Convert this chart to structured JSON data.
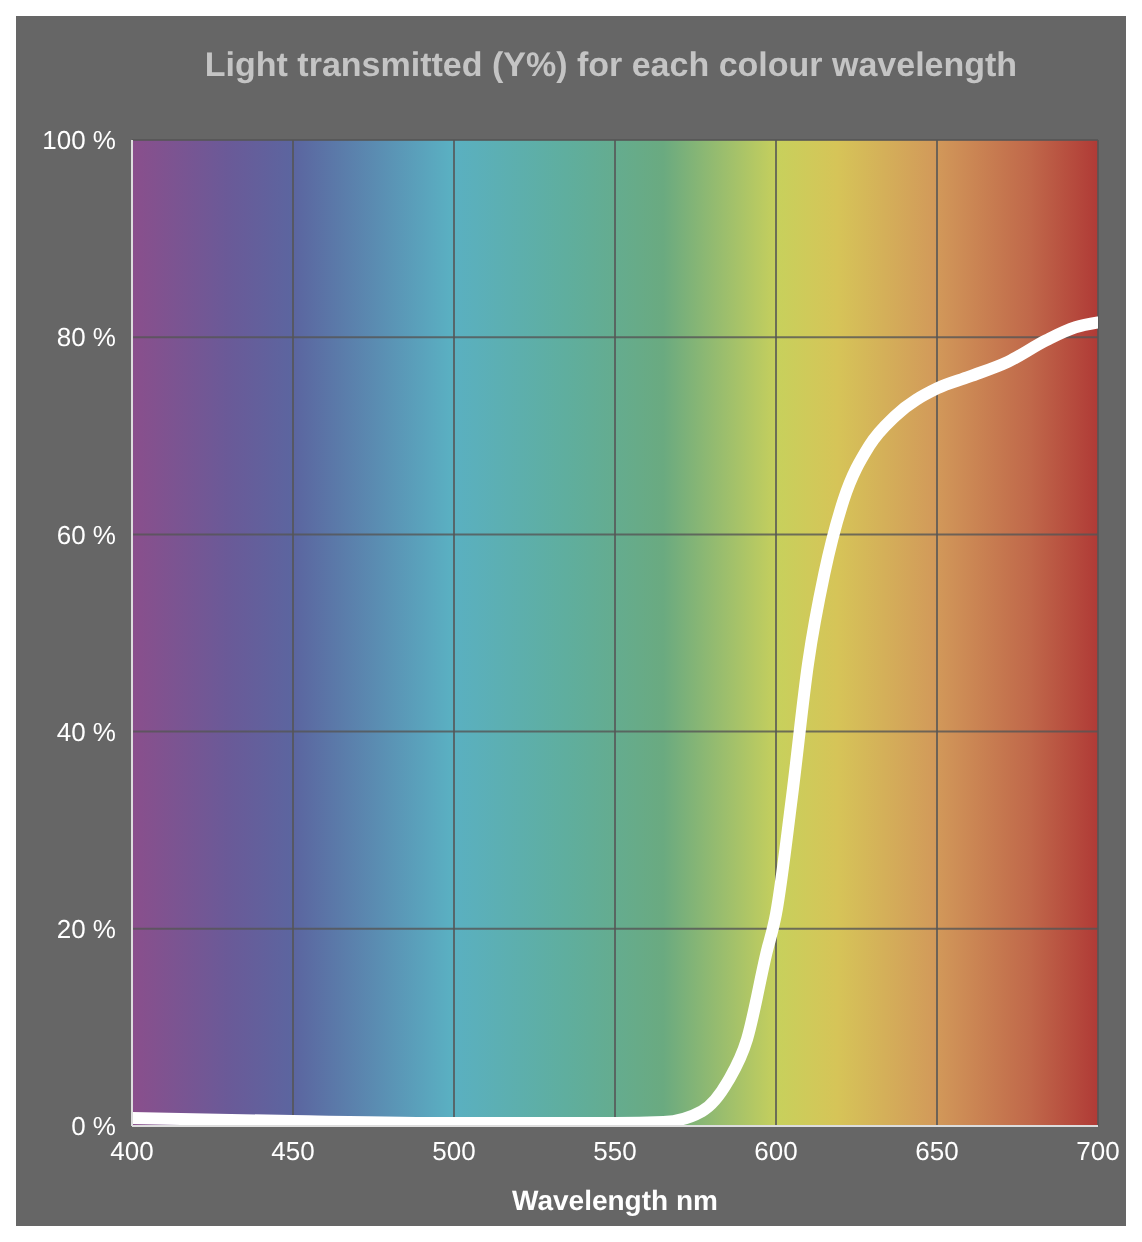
{
  "chart_data": {
    "type": "line",
    "title": "Light transmitted (Y%) for each colour wavelength",
    "xlabel": "Wavelength nm",
    "x": [
      400,
      450,
      500,
      550,
      565,
      577,
      585,
      591,
      597,
      600,
      605,
      610,
      615,
      621,
      629,
      637,
      650,
      660,
      672,
      684,
      693,
      700
    ],
    "series": [
      {
        "color": "#ffffff",
        "values": [
          0.8,
          0.5,
          0.3,
          0.3,
          0.4,
          1.5,
          4.5,
          8.8,
          17.5,
          21.5,
          33.5,
          47,
          56,
          63.5,
          69,
          72,
          74.8,
          76,
          77.5,
          79.7,
          81,
          81.5
        ]
      }
    ],
    "xlim": [
      400,
      700
    ],
    "xticks": [
      400,
      450,
      500,
      550,
      600,
      650,
      700
    ],
    "ylim": [
      0,
      100
    ],
    "yticks": [
      {
        "value": 0,
        "label": "0 %"
      },
      {
        "value": 20,
        "label": "20 %"
      },
      {
        "value": 40,
        "label": "40 %"
      },
      {
        "value": 60,
        "label": "60 %"
      },
      {
        "value": 80,
        "label": "80 %"
      },
      {
        "value": 100,
        "label": "100 %"
      }
    ],
    "grid": true,
    "marker": "none",
    "line_style": "solid"
  }
}
